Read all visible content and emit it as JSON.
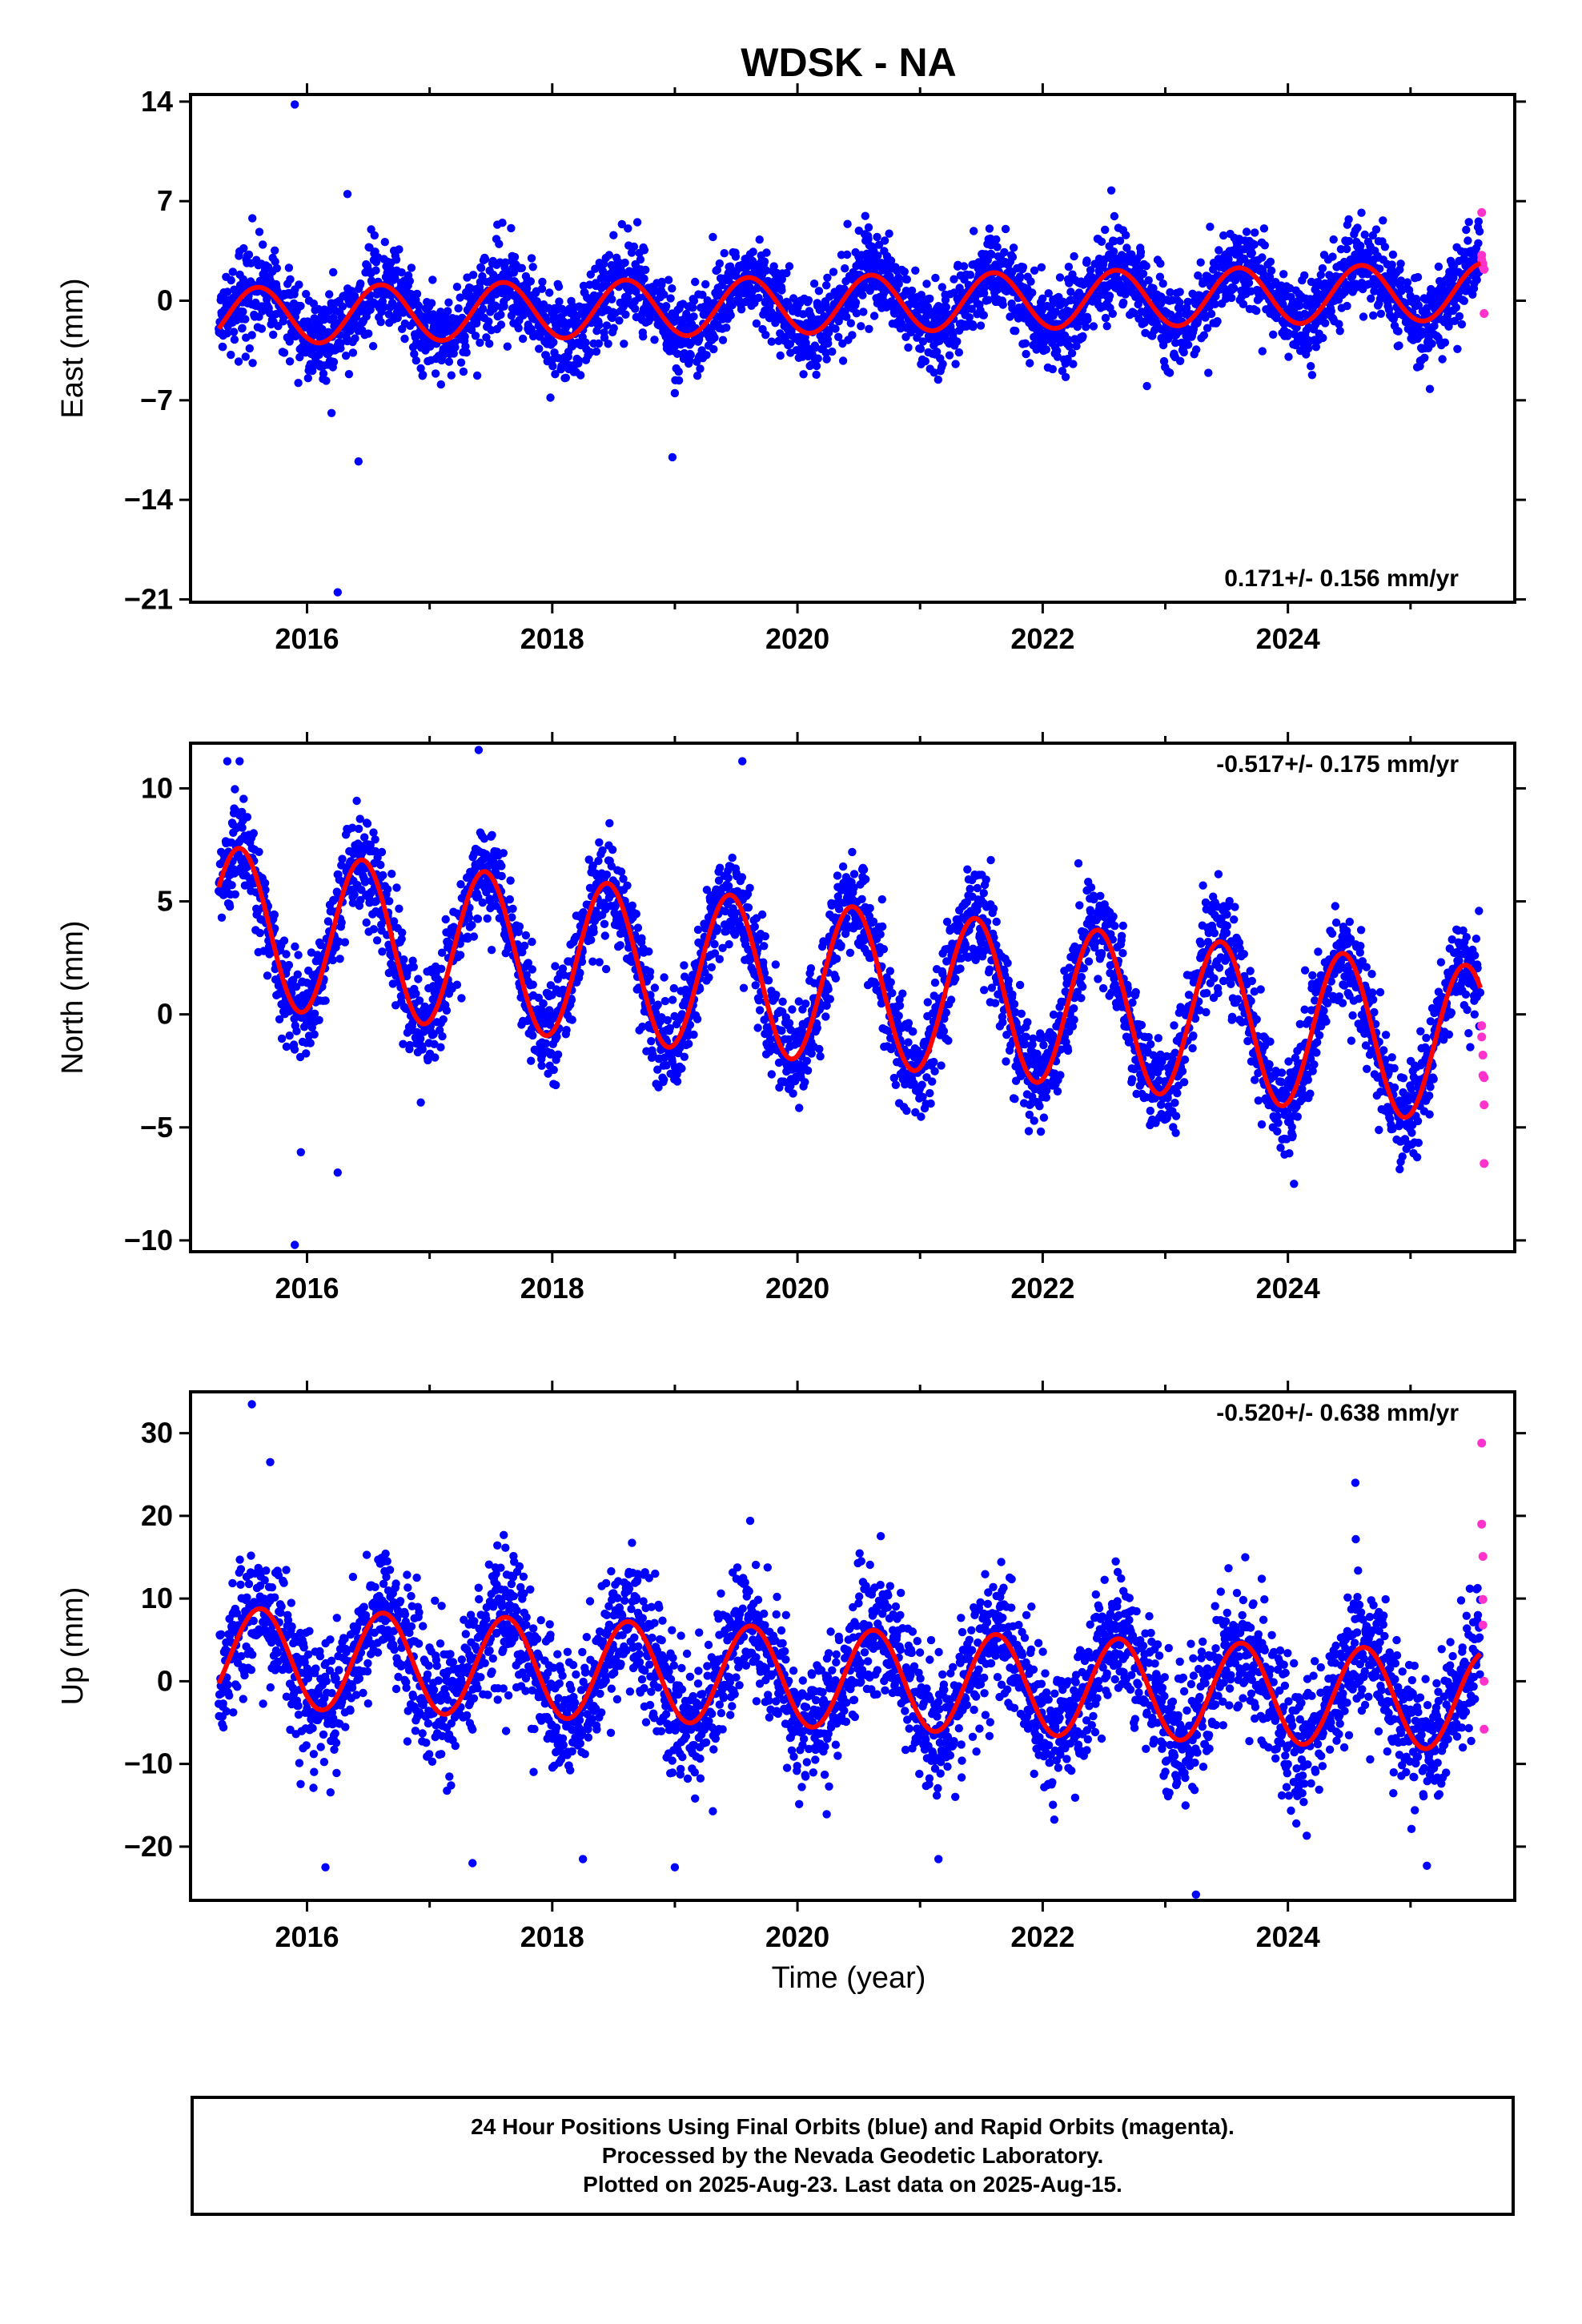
{
  "title": "WDSK - NA",
  "xaxis_label": "Time (year)",
  "caption": {
    "line1": "24 Hour Positions Using Final Orbits (blue) and Rapid Orbits (magenta).",
    "line2": "Processed by the Nevada Geodetic Laboratory.",
    "line3": "Plotted on 2025-Aug-23. Last data on 2025-Aug-15."
  },
  "colors": {
    "final_orbits": "#0000ff",
    "rapid_orbits": "#ff33cc",
    "model_fit": "#ff0000",
    "frame": "#000000"
  },
  "chart_data": [
    {
      "type": "scatter",
      "ylabel": "East (mm)",
      "rate_label": "0.171+/- 0.156 mm/yr",
      "legend_position": "bottom-right",
      "xlim": [
        2015.05,
        2025.85
      ],
      "ylim": [
        -21.2,
        14.5
      ],
      "xticks": [
        2016,
        2018,
        2020,
        2022,
        2024
      ],
      "yticks": [
        -21,
        -14,
        -7,
        0,
        7,
        14
      ],
      "grid": false,
      "series": [
        {
          "name": "Final Orbits",
          "color": "#0000ff",
          "model": {
            "offset": -0.3,
            "rate": 0.171,
            "amplitude": 2.0,
            "peak_phase": 0.6,
            "noise_sd": 1.5
          }
        },
        {
          "name": "Rapid Orbits",
          "color": "#ff33cc",
          "x": [
            2025.58,
            2025.58,
            2025.58,
            2025.59,
            2025.59,
            2025.6,
            2025.6
          ],
          "y": [
            6.2,
            3.2,
            2.9,
            2.6,
            2.4,
            2.2,
            -0.9
          ]
        }
      ],
      "outliers": [
        [
          2015.9,
          13.8
        ],
        [
          2016.33,
          7.5
        ],
        [
          2016.42,
          -11.3
        ],
        [
          2016.25,
          -20.5
        ],
        [
          2016.2,
          -7.9
        ],
        [
          2016.13,
          -5.5
        ],
        [
          2018.98,
          -11.0
        ],
        [
          2022.85,
          -6.0
        ],
        [
          2019.0,
          -6.5
        ]
      ]
    },
    {
      "type": "scatter",
      "ylabel": "North (mm)",
      "rate_label": "-0.517+/- 0.175 mm/yr",
      "legend_position": "top-right",
      "xlim": [
        2015.05,
        2025.85
      ],
      "ylim": [
        -10.5,
        12.0
      ],
      "xticks": [
        2016,
        2018,
        2020,
        2022,
        2024
      ],
      "yticks": [
        -10,
        -5,
        0,
        5,
        10
      ],
      "grid": false,
      "series": [
        {
          "name": "Final Orbits",
          "color": "#0000ff",
          "model": {
            "offset": 1.5,
            "rate": -0.517,
            "amplitude": 3.5,
            "peak_phase": 0.45,
            "noise_sd": 1.1
          }
        },
        {
          "name": "Rapid Orbits",
          "color": "#ff33cc",
          "x": [
            2025.58,
            2025.58,
            2025.59,
            2025.59,
            2025.6,
            2025.6,
            2025.6
          ],
          "y": [
            -0.5,
            -1.0,
            -1.8,
            -2.7,
            -2.8,
            -4.0,
            -6.6
          ]
        }
      ],
      "outliers": [
        [
          2015.35,
          11.2
        ],
        [
          2015.45,
          11.2
        ],
        [
          2017.4,
          11.7
        ],
        [
          2019.55,
          11.2
        ],
        [
          2015.9,
          -10.2
        ],
        [
          2016.25,
          -7.0
        ],
        [
          2015.95,
          -6.1
        ],
        [
          2024.05,
          -7.5
        ]
      ]
    },
    {
      "type": "scatter",
      "ylabel": "Up (mm)",
      "rate_label": "-0.520+/- 0.638 mm/yr",
      "legend_position": "top-right",
      "xlim": [
        2015.05,
        2025.85
      ],
      "ylim": [
        -26.5,
        35.0
      ],
      "xticks": [
        2016,
        2018,
        2020,
        2022,
        2024
      ],
      "yticks": [
        -20,
        -10,
        0,
        10,
        20,
        30
      ],
      "grid": false,
      "series": [
        {
          "name": "Final Orbits",
          "color": "#0000ff",
          "model": {
            "offset": 0.5,
            "rate": -0.52,
            "amplitude": 6.0,
            "peak_phase": 0.62,
            "noise_sd": 4.0
          }
        },
        {
          "name": "Rapid Orbits",
          "color": "#ff33cc",
          "x": [
            2025.58,
            2025.58,
            2025.59,
            2025.59,
            2025.59,
            2025.6,
            2025.6
          ],
          "y": [
            28.8,
            19.0,
            15.1,
            9.9,
            6.8,
            0.0,
            -5.8
          ]
        }
      ],
      "outliers": [
        [
          2015.55,
          33.5
        ],
        [
          2016.15,
          -22.5
        ],
        [
          2017.35,
          -22.0
        ],
        [
          2018.25,
          -21.5
        ],
        [
          2019.0,
          -22.5
        ],
        [
          2023.25,
          -25.8
        ],
        [
          2021.15,
          -21.5
        ],
        [
          2015.7,
          26.5
        ],
        [
          2024.55,
          24.0
        ]
      ]
    }
  ]
}
